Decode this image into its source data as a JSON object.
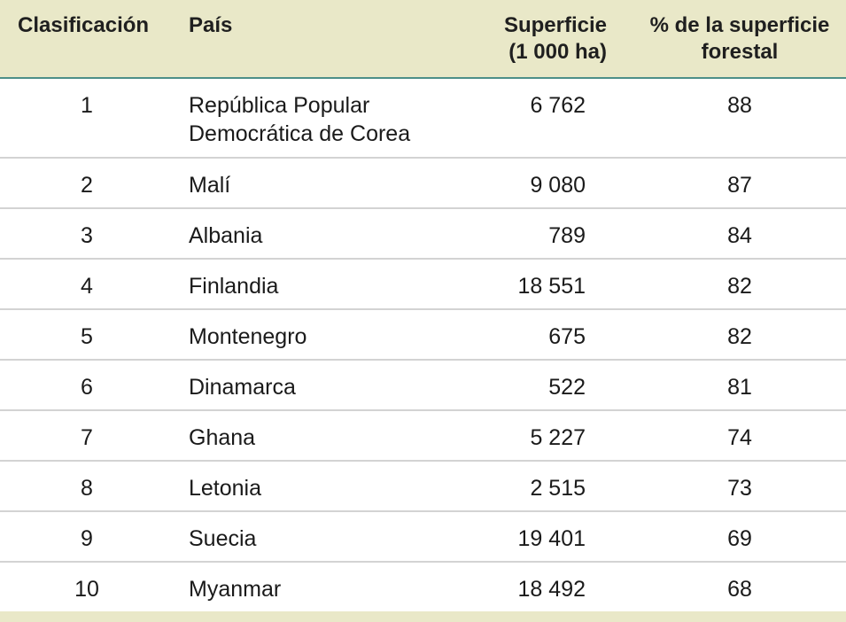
{
  "table": {
    "headers": {
      "rank": "Clasificación",
      "country": "País",
      "area_line1": "Superficie",
      "area_line2": "(1 000 ha)",
      "pct_line1": "% de la superficie",
      "pct_line2": "forestal"
    },
    "rows": [
      {
        "rank": "1",
        "country": "República Popular Democrática de Corea",
        "area": "6 762",
        "pct": "88"
      },
      {
        "rank": "2",
        "country": "Malí",
        "area": "9 080",
        "pct": "87"
      },
      {
        "rank": "3",
        "country": "Albania",
        "area": "789",
        "pct": "84"
      },
      {
        "rank": "4",
        "country": "Finlandia",
        "area": "18 551",
        "pct": "82"
      },
      {
        "rank": "5",
        "country": "Montenegro",
        "area": "675",
        "pct": "82"
      },
      {
        "rank": "6",
        "country": "Dinamarca",
        "area": "522",
        "pct": "81"
      },
      {
        "rank": "7",
        "country": "Ghana",
        "area": "5 227",
        "pct": "74"
      },
      {
        "rank": "8",
        "country": "Letonia",
        "area": "2 515",
        "pct": "73"
      },
      {
        "rank": "9",
        "country": "Suecia",
        "area": "19 401",
        "pct": "69"
      },
      {
        "rank": "10",
        "country": "Myanmar",
        "area": "18 492",
        "pct": "68"
      }
    ]
  },
  "colors": {
    "header_bg": "#e9e8c8",
    "rule_accent": "#4d8f88",
    "row_divider": "#d3d3d3"
  }
}
